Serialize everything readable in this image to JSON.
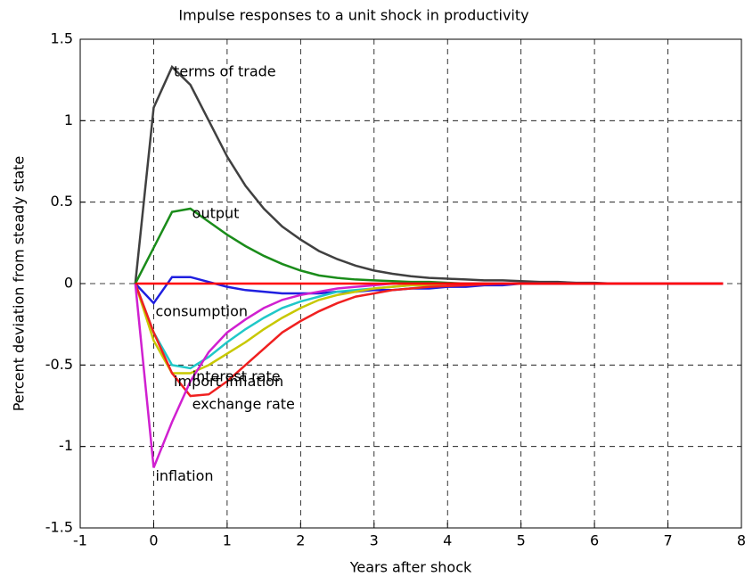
{
  "chart_data": {
    "type": "line",
    "title": "Impulse responses to a unit shock in productivity",
    "x_label": "Years after shock",
    "y_label": "Percent deviation from steady state",
    "x": [
      -0.25,
      0,
      0.25,
      0.5,
      0.75,
      1,
      1.25,
      1.5,
      1.75,
      2,
      2.25,
      2.5,
      2.75,
      3,
      3.25,
      3.5,
      3.75,
      4,
      4.25,
      4.5,
      4.75,
      5,
      5.25,
      5.5,
      5.75,
      6,
      6.25,
      6.5,
      6.75,
      7,
      7.25,
      7.5,
      7.75
    ],
    "xlim": [
      -1,
      8
    ],
    "xticks": [
      -1,
      0,
      1,
      2,
      3,
      4,
      5,
      6,
      7,
      8
    ],
    "ylim": [
      -1.5,
      1.5
    ],
    "yticks": [
      -1.5,
      -1,
      -0.5,
      0,
      0.5,
      1,
      1.5
    ],
    "grid": true,
    "series": [
      {
        "name": "terms of trade",
        "color": "#404040",
        "values": [
          0,
          1.08,
          1.33,
          1.22,
          1.0,
          0.78,
          0.6,
          0.46,
          0.35,
          0.27,
          0.2,
          0.15,
          0.11,
          0.08,
          0.06,
          0.045,
          0.035,
          0.03,
          0.025,
          0.02,
          0.02,
          0.015,
          0.01,
          0.01,
          0.005,
          0.005,
          0,
          0,
          0,
          0,
          0,
          0,
          0
        ]
      },
      {
        "name": "output",
        "color": "#1a8c1a",
        "values": [
          0,
          0.22,
          0.44,
          0.46,
          0.38,
          0.3,
          0.23,
          0.17,
          0.12,
          0.08,
          0.05,
          0.035,
          0.025,
          0.02,
          0.015,
          0.01,
          0.01,
          0.005,
          0,
          0,
          0,
          0,
          0,
          0,
          0,
          0,
          0,
          0,
          0,
          0,
          0,
          0,
          0
        ]
      },
      {
        "name": "consumption",
        "color": "#1f1fe0",
        "values": [
          0,
          -0.12,
          0.04,
          0.04,
          0.01,
          -0.02,
          -0.04,
          -0.05,
          -0.06,
          -0.06,
          -0.06,
          -0.05,
          -0.05,
          -0.04,
          -0.04,
          -0.03,
          -0.03,
          -0.02,
          -0.02,
          -0.01,
          -0.01,
          0,
          0,
          0,
          0,
          0,
          0,
          0,
          0,
          0,
          0,
          0,
          0
        ]
      },
      {
        "name": "interest rate",
        "color": "#20c8c8",
        "values": [
          0,
          -0.3,
          -0.5,
          -0.52,
          -0.45,
          -0.36,
          -0.28,
          -0.21,
          -0.15,
          -0.11,
          -0.08,
          -0.05,
          -0.04,
          -0.03,
          -0.02,
          -0.01,
          -0.01,
          0,
          0,
          0,
          0,
          0,
          0,
          0,
          0,
          0,
          0,
          0,
          0,
          0,
          0,
          0,
          0
        ]
      },
      {
        "name": "import inflation",
        "color": "#c8c800",
        "values": [
          0,
          -0.35,
          -0.55,
          -0.55,
          -0.5,
          -0.43,
          -0.36,
          -0.28,
          -0.21,
          -0.15,
          -0.1,
          -0.07,
          -0.05,
          -0.03,
          -0.02,
          -0.01,
          -0.01,
          0,
          0,
          0,
          0,
          0,
          0,
          0,
          0,
          0,
          0,
          0,
          0,
          0,
          0,
          0,
          0
        ]
      },
      {
        "name": "exchange rate",
        "color": "#f02020",
        "values": [
          0,
          -0.3,
          -0.55,
          -0.69,
          -0.68,
          -0.6,
          -0.5,
          -0.4,
          -0.3,
          -0.23,
          -0.17,
          -0.12,
          -0.08,
          -0.06,
          -0.04,
          -0.03,
          -0.02,
          -0.015,
          -0.01,
          -0.005,
          0,
          0,
          0,
          0,
          0,
          0,
          0,
          0,
          0,
          0,
          0,
          0,
          0
        ]
      },
      {
        "name": "inflation",
        "color": "#d020d0",
        "values": [
          0,
          -1.13,
          -0.85,
          -0.6,
          -0.42,
          -0.3,
          -0.22,
          -0.15,
          -0.1,
          -0.07,
          -0.05,
          -0.03,
          -0.02,
          -0.01,
          0,
          0,
          0,
          0,
          0,
          0,
          0,
          0,
          0,
          0,
          0,
          0,
          0,
          0,
          0,
          0,
          0,
          0,
          0
        ]
      },
      {
        "color": "#ff0000",
        "values": [
          0,
          0,
          0,
          0,
          0,
          0,
          0,
          0,
          0,
          0,
          0,
          0,
          0,
          0,
          0,
          0,
          0,
          0,
          0,
          0,
          0,
          0,
          0,
          0,
          0,
          0,
          0,
          0,
          0,
          0,
          0,
          0,
          0
        ]
      }
    ]
  }
}
